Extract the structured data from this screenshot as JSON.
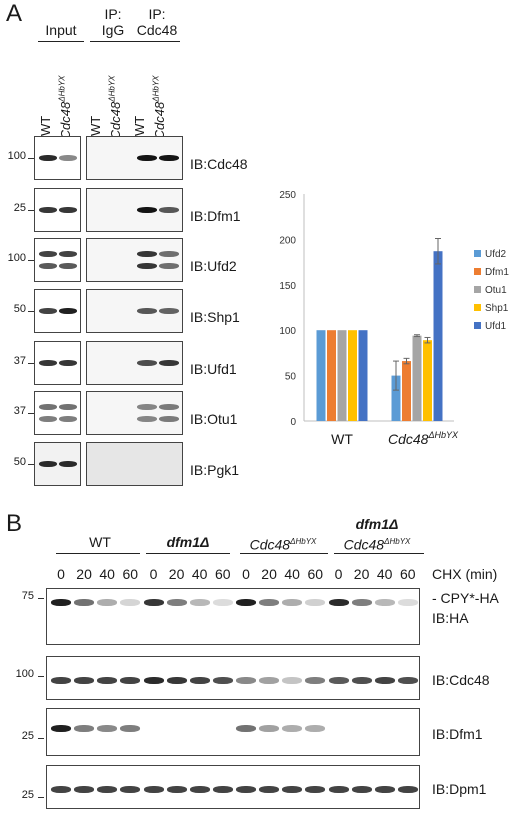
{
  "panel_a": {
    "letter": "A",
    "groups": [
      {
        "label": "Input",
        "lanes": [
          "WT",
          "Cdc48ΔHbYX"
        ]
      },
      {
        "label": "IP:\nIgG",
        "lanes": [
          "WT",
          "Cdc48ΔHbYX"
        ]
      },
      {
        "label": "IP:\nCdc48",
        "lanes": [
          "WT",
          "Cdc48ΔHbYX"
        ]
      }
    ],
    "lane_wt": "WT",
    "lane_mut": "Cdc48",
    "lane_mut_sup": "ΔHbYX",
    "header_input": "Input",
    "header_igg_1": "IP:",
    "header_igg_2": "IgG",
    "header_cdc_1": "IP:",
    "header_cdc_2": "Cdc48",
    "blots": [
      {
        "mw": "100",
        "label": "IB:Cdc48"
      },
      {
        "mw": "25",
        "label": "IB:Dfm1"
      },
      {
        "mw": "100",
        "label": "IB:Ufd2"
      },
      {
        "mw": "50",
        "label": "IB:Shp1"
      },
      {
        "mw": "37",
        "label": "IB:Ufd1"
      },
      {
        "mw": "37",
        "label": "IB:Otu1"
      },
      {
        "mw": "50",
        "label": "IB:Pgk1"
      }
    ]
  },
  "chart_data": {
    "type": "bar",
    "categories": [
      "WT",
      "Cdc48ΔHbYX"
    ],
    "series": [
      {
        "name": "Ufd2",
        "values": [
          100,
          50
        ],
        "error": [
          0,
          16
        ],
        "color": "#5b9bd5"
      },
      {
        "name": "Dfm1",
        "values": [
          100,
          66
        ],
        "error": [
          0,
          3
        ],
        "color": "#ed7d31"
      },
      {
        "name": "Otu1",
        "values": [
          100,
          94
        ],
        "error": [
          0,
          1
        ],
        "color": "#a5a5a5"
      },
      {
        "name": "Shp1",
        "values": [
          100,
          89
        ],
        "error": [
          0,
          3
        ],
        "color": "#ffc000"
      },
      {
        "name": "Ufd1",
        "values": [
          100,
          187
        ],
        "error": [
          0,
          14
        ],
        "color": "#4472c4"
      }
    ],
    "yticks": [
      0,
      50,
      100,
      150,
      200,
      250
    ],
    "ylim": [
      0,
      250
    ],
    "grid": false,
    "legend": "right",
    "cat_wt": "WT",
    "cat_mut": "Cdc48",
    "cat_mut_sup": "ΔHbYX"
  },
  "panel_b": {
    "letter": "B",
    "groups": [
      {
        "label": "WT",
        "italic": false
      },
      {
        "label": "dfm1Δ",
        "italic": true
      },
      {
        "label": "Cdc48",
        "sup": "ΔHbYX",
        "italic": true
      },
      {
        "label": "dfm1Δ",
        "label2": "Cdc48",
        "sup2": "ΔHbYX",
        "italic": true
      }
    ],
    "timepoints": [
      "0",
      "20",
      "40",
      "60"
    ],
    "time_axis_label": "CHX (min)",
    "blots": [
      {
        "mw": "75",
        "label": "- CPY*-HA",
        "label2": "IB:HA"
      },
      {
        "mw": "100",
        "label": "IB:Cdc48"
      },
      {
        "mw": "25",
        "label": "IB:Dfm1"
      },
      {
        "mw": "25",
        "label": "IB:Dpm1"
      }
    ]
  }
}
